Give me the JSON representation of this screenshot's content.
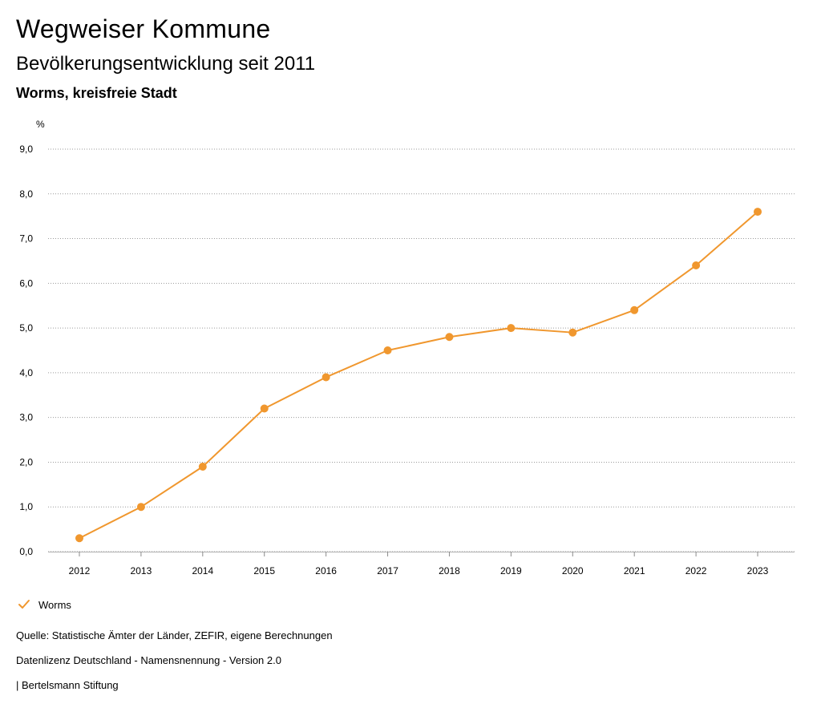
{
  "header": {
    "title": "Wegweiser Kommune",
    "subtitle": "Bevölkerungsentwicklung seit 2011",
    "region": "Worms, kreisfreie Stadt"
  },
  "legend": {
    "items": [
      {
        "label": "Worms",
        "icon": "checkmark-icon"
      }
    ]
  },
  "footer": {
    "source": "Quelle: Statistische Ämter der Länder, ZEFIR, eigene Berechnungen",
    "license": "Datenlizenz Deutschland - Namensnennung - Version 2.0",
    "publisher": "| Bertelsmann Stiftung"
  },
  "chart_data": {
    "type": "line",
    "title": "Bevölkerungsentwicklung seit 2011",
    "ylabel": "%",
    "xlabel": "",
    "x": [
      "2012",
      "2013",
      "2014",
      "2015",
      "2016",
      "2017",
      "2018",
      "2019",
      "2020",
      "2021",
      "2022",
      "2023"
    ],
    "series": [
      {
        "name": "Worms",
        "color": "#f0972e",
        "values": [
          0.3,
          1.0,
          1.9,
          3.2,
          3.9,
          4.5,
          4.8,
          5.0,
          4.9,
          5.4,
          6.4,
          7.6
        ]
      }
    ],
    "ylim": [
      0,
      9
    ],
    "yticks": [
      0,
      1,
      2,
      3,
      4,
      5,
      6,
      7,
      8,
      9
    ],
    "ytick_labels": [
      "0,0",
      "1,0",
      "2,0",
      "3,0",
      "4,0",
      "5,0",
      "6,0",
      "7,0",
      "8,0",
      "9,0"
    ],
    "grid": true,
    "grid_style": "dotted",
    "legend_position": "bottom-left"
  }
}
